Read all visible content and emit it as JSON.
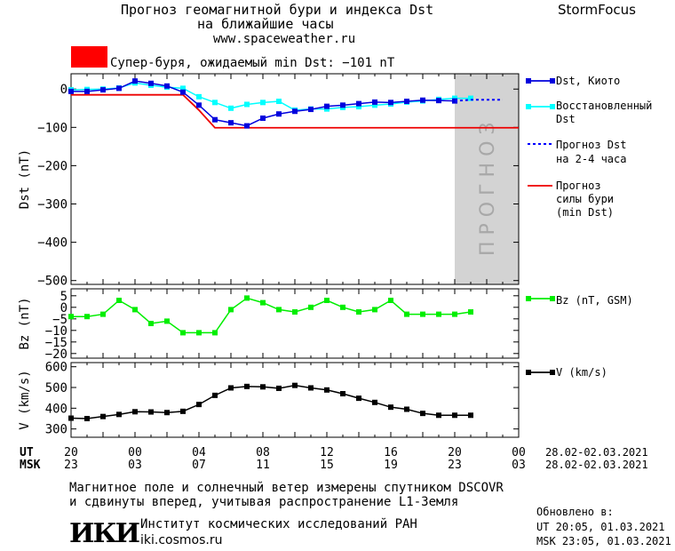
{
  "header": {
    "title_line1": "Прогноз геомагнитной бури и индекса Dst",
    "title_line2": "на ближайшие часы",
    "url": "www.spaceweather.ru",
    "brand": "StormFocus"
  },
  "storm_banner": {
    "text": "Супер-буря, ожидаемый min Dst: −101 nT",
    "color": "#ff0000"
  },
  "forecast_band_text": "ПРОГНОЗ",
  "legend": {
    "dst_kyoto": "Dst, Киото",
    "restored_1": "Восстановленный",
    "restored_2": "Dst",
    "forecast_1": "Прогноз Dst",
    "forecast_2": "на 2-4 часа",
    "storm_1": "Прогноз",
    "storm_2": "силы бури",
    "storm_3": "(min Dst)",
    "bz": "Bz (nT, GSM)",
    "v": "V (km/s)"
  },
  "time_axis": {
    "ut_label": "UT",
    "msk_label": "MSK",
    "ut_ticks": [
      "20",
      "00",
      "04",
      "08",
      "12",
      "16",
      "20",
      "00"
    ],
    "msk_ticks": [
      "23",
      "03",
      "07",
      "11",
      "15",
      "19",
      "23",
      "03"
    ],
    "date_range": "28.02-02.03.2021"
  },
  "footer": {
    "note_line1": "Магнитное поле и солнечный ветер измерены спутником DSCOVR",
    "note_line2": "и сдвинуты вперед, учитывая распространение L1-Земля",
    "logo": "ИКИ",
    "institute": "Институт космических исследований РАН",
    "institute_url": "iki.cosmos.ru",
    "updated_label": "Обновлено в:",
    "updated_ut": "UT  20:05, 01.03.2021",
    "updated_msk": "MSK 23:05, 01.03.2021"
  },
  "colors": {
    "dst": "#0000dd",
    "restored": "#00ffff",
    "forecast": "#0000ff",
    "storm": "#ee0000",
    "bz": "#00ee00",
    "v": "#000000",
    "forecast_band": "#d3d3d3"
  },
  "chart_data": [
    {
      "type": "line",
      "panel": "dst",
      "ylabel": "Dst (nT)",
      "ylim": [
        -510,
        40
      ],
      "yticks": [
        0,
        -100,
        -200,
        -300,
        -400,
        -500
      ],
      "x_unit": "hours from 20 UT 28.02.2021",
      "xlim": [
        0,
        28
      ],
      "forecast_band": [
        24,
        28
      ],
      "series": [
        {
          "name": "Dst, Киото",
          "x": [
            0,
            1,
            2,
            3,
            4,
            5,
            6,
            7,
            8,
            9,
            10,
            11,
            12,
            13,
            14,
            15,
            16,
            17,
            18,
            19,
            20,
            21,
            22,
            23,
            24
          ],
          "y": [
            -6,
            -6,
            -2,
            2,
            21,
            15,
            8,
            -8,
            -42,
            -80,
            -88,
            -96,
            -76,
            -65,
            -58,
            -53,
            -45,
            -42,
            -38,
            -34,
            -35,
            -32,
            -29,
            -30,
            -31
          ]
        },
        {
          "name": "Восстановленный Dst",
          "x": [
            0,
            1,
            2,
            3,
            4,
            5,
            6,
            7,
            8,
            9,
            10,
            11,
            12,
            13,
            14,
            15,
            16,
            17,
            18,
            19,
            20,
            21,
            22,
            23,
            24,
            25
          ],
          "y": [
            -2,
            -1,
            0,
            3,
            16,
            10,
            5,
            2,
            -20,
            -35,
            -50,
            -40,
            -35,
            -32,
            -55,
            -52,
            -52,
            -48,
            -46,
            -42,
            -39,
            -34,
            -31,
            -27,
            -24,
            -24
          ]
        },
        {
          "name": "Прогноз Dst на 2-4 часа",
          "x": [
            24,
            25,
            26,
            27
          ],
          "y": [
            -31,
            -28,
            -28,
            -28
          ]
        },
        {
          "name": "Прогноз силы бури (min Dst)",
          "x": [
            -1,
            2,
            3,
            4,
            5,
            6,
            7,
            8,
            9,
            10,
            29
          ],
          "y": [
            -15,
            -15,
            -15,
            -15,
            -15,
            -15,
            -15,
            -55,
            -101,
            -101,
            -101
          ]
        }
      ]
    },
    {
      "type": "line",
      "panel": "bz",
      "ylabel": "Bz (nT)",
      "ylim": [
        -22,
        8
      ],
      "yticks": [
        5,
        0,
        -5,
        -10,
        -15,
        -20
      ],
      "x_unit": "hours from 20 UT 28.02.2021",
      "xlim": [
        0,
        28
      ],
      "series": [
        {
          "name": "Bz (nT, GSM)",
          "x": [
            0,
            1,
            2,
            3,
            4,
            5,
            6,
            7,
            8,
            9,
            10,
            11,
            12,
            13,
            14,
            15,
            16,
            17,
            18,
            19,
            20,
            21,
            22,
            23,
            24,
            25
          ],
          "y": [
            -4,
            -4,
            -3,
            3,
            -1,
            -7,
            -6,
            -11,
            -11,
            -11,
            -1,
            4,
            2,
            -1,
            -2,
            0,
            3,
            0,
            -2,
            -1,
            3,
            -3,
            -3,
            -3,
            -3,
            -2
          ]
        }
      ]
    },
    {
      "type": "line",
      "panel": "v",
      "ylabel": "V (km/s)",
      "ylim": [
        260,
        620
      ],
      "yticks": [
        300,
        400,
        500,
        600
      ],
      "x_unit": "hours from 20 UT 28.02.2021",
      "xlim": [
        0,
        28
      ],
      "series": [
        {
          "name": "V (km/s)",
          "x": [
            0,
            1,
            2,
            3,
            4,
            5,
            6,
            7,
            8,
            9,
            10,
            11,
            12,
            13,
            14,
            15,
            16,
            17,
            18,
            19,
            20,
            21,
            22,
            23,
            24,
            25
          ],
          "y": [
            352,
            350,
            360,
            370,
            383,
            382,
            379,
            385,
            418,
            462,
            498,
            505,
            503,
            496,
            510,
            498,
            488,
            470,
            448,
            428,
            405,
            395,
            375,
            366,
            366,
            366
          ]
        }
      ]
    }
  ]
}
